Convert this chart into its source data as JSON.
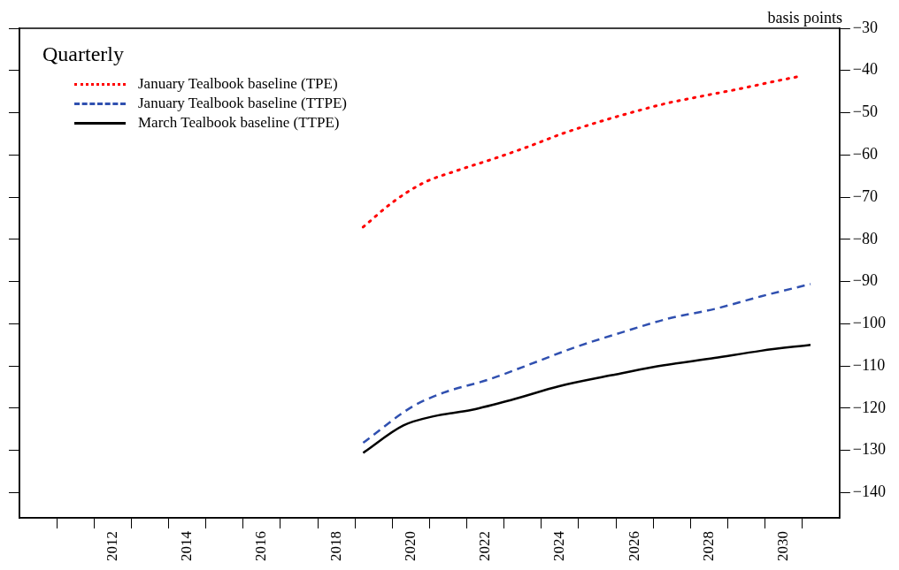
{
  "chart_data": {
    "type": "line",
    "ylabel": "basis points",
    "legend_title": "Quarterly",
    "legend": "top left",
    "marker": "none",
    "grid": false,
    "xlim": [
      2010,
      2032
    ],
    "xticks": [
      {
        "value": 2011,
        "label": null
      },
      {
        "value": 2012,
        "label": null
      },
      {
        "value": 2012.5,
        "label": "2012"
      },
      {
        "value": 2013,
        "label": null
      },
      {
        "value": 2014,
        "label": null
      },
      {
        "value": 2014.5,
        "label": "2014"
      },
      {
        "value": 2015,
        "label": null
      },
      {
        "value": 2016,
        "label": null
      },
      {
        "value": 2016.5,
        "label": "2016"
      },
      {
        "value": 2017,
        "label": null
      },
      {
        "value": 2018,
        "label": null
      },
      {
        "value": 2018.5,
        "label": "2018"
      },
      {
        "value": 2019,
        "label": null
      },
      {
        "value": 2020,
        "label": null
      },
      {
        "value": 2020.5,
        "label": "2020"
      },
      {
        "value": 2021,
        "label": null
      },
      {
        "value": 2022,
        "label": null
      },
      {
        "value": 2022.5,
        "label": "2022"
      },
      {
        "value": 2023,
        "label": null
      },
      {
        "value": 2024,
        "label": null
      },
      {
        "value": 2024.5,
        "label": "2024"
      },
      {
        "value": 2025,
        "label": null
      },
      {
        "value": 2026,
        "label": null
      },
      {
        "value": 2026.5,
        "label": "2026"
      },
      {
        "value": 2027,
        "label": null
      },
      {
        "value": 2028,
        "label": null
      },
      {
        "value": 2028.5,
        "label": "2028"
      },
      {
        "value": 2029,
        "label": null
      },
      {
        "value": 2030,
        "label": null
      },
      {
        "value": 2030.5,
        "label": "2030"
      },
      {
        "value": 2031,
        "label": null
      }
    ],
    "ylim": [
      -146,
      -30
    ],
    "yticks": [
      -30,
      -40,
      -50,
      -60,
      -70,
      -80,
      -90,
      -100,
      -110,
      -120,
      -130,
      -140
    ],
    "series": [
      {
        "name": "January Tealbook baseline (TPE)",
        "color": "#ff0000",
        "line_style": "dotted",
        "x": [
          2019.22,
          2019.97,
          2020.82,
          2021.74,
          2022.69,
          2023.63,
          2024.55,
          2025.5,
          2026.44,
          2027.4,
          2028.36,
          2029.34,
          2030.3,
          2030.98
        ],
        "values": [
          -77.1,
          -71.5,
          -66.7,
          -63.7,
          -61.0,
          -58.1,
          -55.0,
          -52.3,
          -49.9,
          -47.7,
          -46.0,
          -44.3,
          -42.5,
          -41.3
        ]
      },
      {
        "name": "January Tealbook baseline (TTPE)",
        "color": "#3050b0",
        "line_style": "dashed",
        "x": [
          2019.22,
          2020.55,
          2021.39,
          2022.56,
          2023.64,
          2024.9,
          2026.14,
          2027.4,
          2028.65,
          2029.9,
          2031.22
        ],
        "values": [
          -128.2,
          -119.6,
          -116.3,
          -113.3,
          -109.8,
          -105.6,
          -102.1,
          -98.8,
          -96.5,
          -93.5,
          -90.6
        ]
      },
      {
        "name": "March Tealbook baseline (TTPE)",
        "color": "#000000",
        "line_style": "solid",
        "x": [
          2019.22,
          2020.3,
          2021.13,
          2022.14,
          2023.22,
          2024.48,
          2025.89,
          2026.98,
          2028.65,
          2029.9,
          2031.22
        ],
        "values": [
          -130.6,
          -124.1,
          -121.9,
          -120.4,
          -118.0,
          -114.8,
          -112.2,
          -110.3,
          -108.1,
          -106.4,
          -105.0
        ]
      }
    ]
  }
}
